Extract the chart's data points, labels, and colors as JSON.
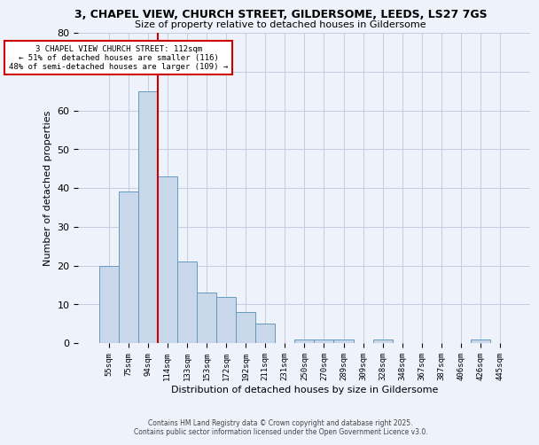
{
  "title_line1": "3, CHAPEL VIEW, CHURCH STREET, GILDERSOME, LEEDS, LS27 7GS",
  "title_line2": "Size of property relative to detached houses in Gildersome",
  "xlabel": "Distribution of detached houses by size in Gildersome",
  "ylabel": "Number of detached properties",
  "bar_color": "#c8d8ea",
  "bar_edge_color": "#6699bb",
  "categories": [
    "55sqm",
    "75sqm",
    "94sqm",
    "114sqm",
    "133sqm",
    "153sqm",
    "172sqm",
    "192sqm",
    "211sqm",
    "231sqm",
    "250sqm",
    "270sqm",
    "289sqm",
    "309sqm",
    "328sqm",
    "348sqm",
    "367sqm",
    "387sqm",
    "406sqm",
    "426sqm",
    "445sqm"
  ],
  "values": [
    20,
    39,
    65,
    43,
    21,
    13,
    12,
    8,
    5,
    0,
    1,
    1,
    1,
    0,
    1,
    0,
    0,
    0,
    0,
    1,
    0
  ],
  "ylim": [
    0,
    80
  ],
  "yticks": [
    0,
    10,
    20,
    30,
    40,
    50,
    60,
    70,
    80
  ],
  "vline_x": 2.5,
  "vline_color": "#cc0000",
  "annotation_text": "3 CHAPEL VIEW CHURCH STREET: 112sqm\n← 51% of detached houses are smaller (116)\n48% of semi-detached houses are larger (109) →",
  "annotation_box_color": "#ffffff",
  "annotation_box_edge": "#cc0000",
  "footer_line1": "Contains HM Land Registry data © Crown copyright and database right 2025.",
  "footer_line2": "Contains public sector information licensed under the Open Government Licence v3.0.",
  "background_color": "#eef2fb",
  "grid_color": "#c5cce0"
}
